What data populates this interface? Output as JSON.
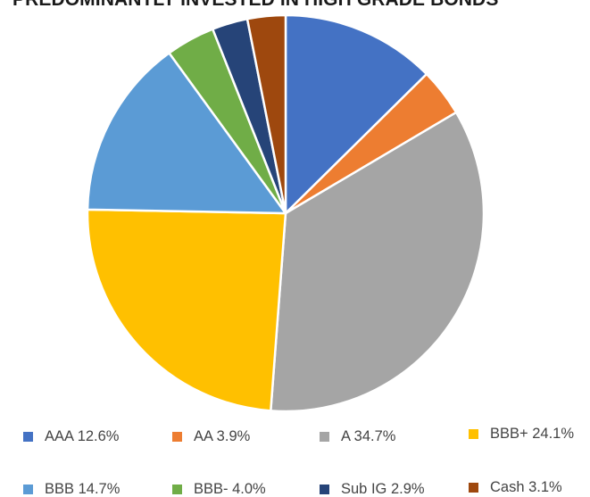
{
  "title": "PREDOMINANTLY INVESTED IN HIGH GRADE BONDS",
  "chart_data": {
    "type": "pie",
    "title": "PREDOMINANTLY INVESTED IN HIGH GRADE BONDS",
    "categories": [
      "AAA",
      "AA",
      "A",
      "BBB+",
      "BBB",
      "BBB-",
      "Sub IG",
      "Cash"
    ],
    "values": [
      12.6,
      3.9,
      34.7,
      24.1,
      14.7,
      4.0,
      2.9,
      3.1
    ],
    "unit": "%",
    "colors": [
      "#4472c4",
      "#ed7d31",
      "#a5a5a5",
      "#ffc000",
      "#5b9bd5",
      "#70ad47",
      "#264478",
      "#9e480e"
    ],
    "legend_position": "bottom",
    "legend": [
      {
        "label": "AAA 12.6%"
      },
      {
        "label": "AA 3.9%"
      },
      {
        "label": "A 34.7%"
      },
      {
        "label": "BBB+ 24.1%"
      },
      {
        "label": "BBB 14.7%"
      },
      {
        "label": "BBB- 4.0%"
      },
      {
        "label": "Sub IG 2.9%"
      },
      {
        "label": "Cash 3.1%"
      }
    ]
  }
}
